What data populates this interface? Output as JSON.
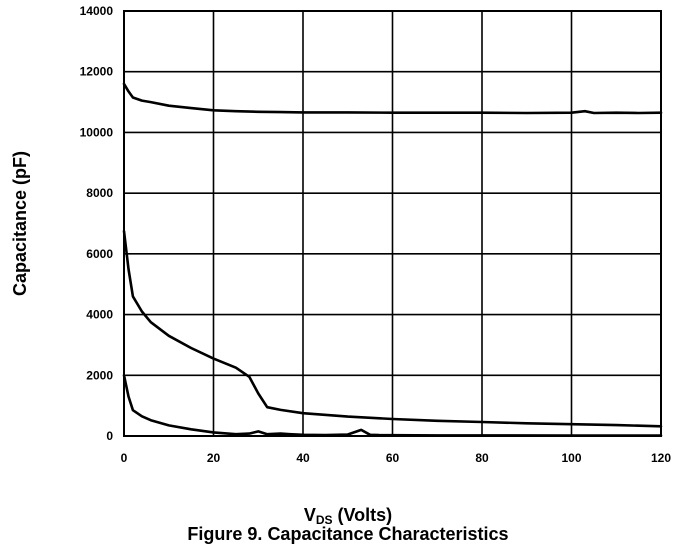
{
  "chart_data": {
    "type": "line",
    "xlabel": {
      "prefix": "V",
      "sub": "DS",
      "suffix": " (Volts)"
    },
    "ylabel": "Capacitance (pF)",
    "caption": "Figure 9. Capacitance Characteristics",
    "xlim": [
      0,
      120
    ],
    "ylim": [
      0,
      14000
    ],
    "xticks": [
      0,
      20,
      40,
      60,
      80,
      100,
      120
    ],
    "yticks": [
      0,
      2000,
      4000,
      6000,
      8000,
      10000,
      12000,
      14000
    ],
    "grid": true,
    "legend": "none",
    "line_color": "#000000",
    "series": [
      {
        "x": [
          0,
          1,
          2,
          4,
          6,
          10,
          15,
          20,
          25,
          30,
          35,
          40,
          50,
          60,
          70,
          80,
          90,
          100,
          103,
          105,
          110,
          115,
          120
        ],
        "y": [
          11600,
          11350,
          11150,
          11050,
          11000,
          10880,
          10800,
          10730,
          10700,
          10680,
          10670,
          10660,
          10660,
          10650,
          10650,
          10650,
          10640,
          10650,
          10700,
          10640,
          10650,
          10640,
          10650
        ]
      },
      {
        "x": [
          0,
          1,
          2,
          4,
          6,
          10,
          15,
          20,
          25,
          28,
          30,
          32,
          35,
          40,
          50,
          60,
          70,
          80,
          90,
          100,
          110,
          120
        ],
        "y": [
          6750,
          5500,
          4600,
          4100,
          3750,
          3300,
          2900,
          2550,
          2250,
          1950,
          1400,
          950,
          860,
          750,
          640,
          560,
          500,
          460,
          420,
          390,
          360,
          320
        ]
      },
      {
        "x": [
          0,
          1,
          2,
          4,
          6,
          10,
          15,
          20,
          25,
          28,
          30,
          32,
          35,
          37,
          40,
          45,
          50,
          53,
          55,
          57,
          60,
          70,
          80,
          100,
          120
        ],
        "y": [
          2000,
          1300,
          850,
          650,
          520,
          350,
          220,
          120,
          60,
          80,
          150,
          60,
          80,
          60,
          40,
          30,
          50,
          200,
          40,
          30,
          25,
          20,
          20,
          15,
          15
        ]
      }
    ]
  }
}
